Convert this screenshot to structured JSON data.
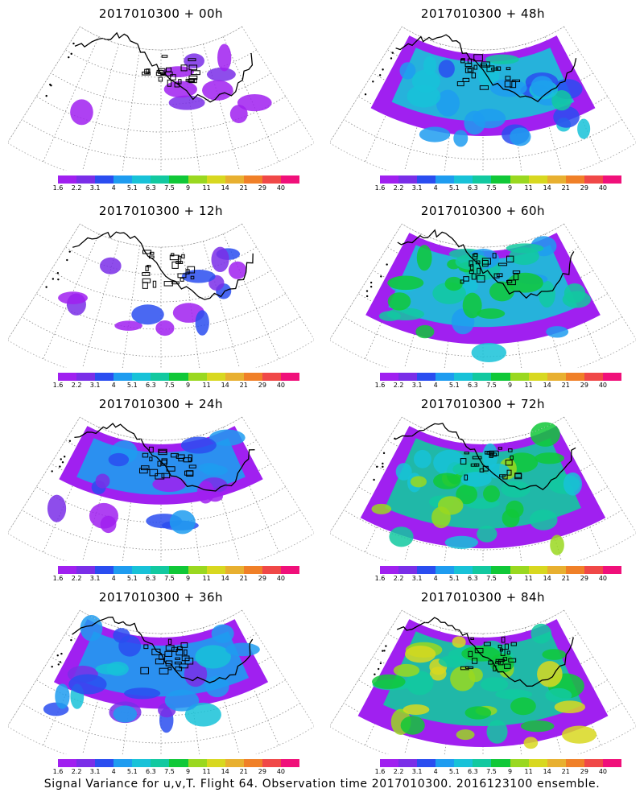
{
  "panels": [
    {
      "title": "2017010300 + 00h",
      "stage": 0
    },
    {
      "title": "2017010300 + 48h",
      "stage": 4
    },
    {
      "title": "2017010300 + 12h",
      "stage": 1
    },
    {
      "title": "2017010300 + 60h",
      "stage": 5
    },
    {
      "title": "2017010300 + 24h",
      "stage": 2
    },
    {
      "title": "2017010300 + 72h",
      "stage": 6
    },
    {
      "title": "2017010300 + 36h",
      "stage": 3
    },
    {
      "title": "2017010300 + 84h",
      "stage": 7
    }
  ],
  "colorbar": {
    "labels": [
      "1.6",
      "2.2",
      "3.1",
      "4",
      "5.1",
      "6.3",
      "7.5",
      "9",
      "11",
      "14",
      "21",
      "29",
      "40"
    ],
    "colors": [
      "#a020f0",
      "#7a2ee8",
      "#2a4df0",
      "#1e9cf0",
      "#18c2d8",
      "#12c9a0",
      "#10c838",
      "#9ad820",
      "#d8d820",
      "#e8b030",
      "#f08028",
      "#f04848",
      "#f0107a"
    ]
  },
  "footer": "Signal Variance for u,v,T. Flight 64. Observation time 2017010300. 2016123100 ensemble."
}
